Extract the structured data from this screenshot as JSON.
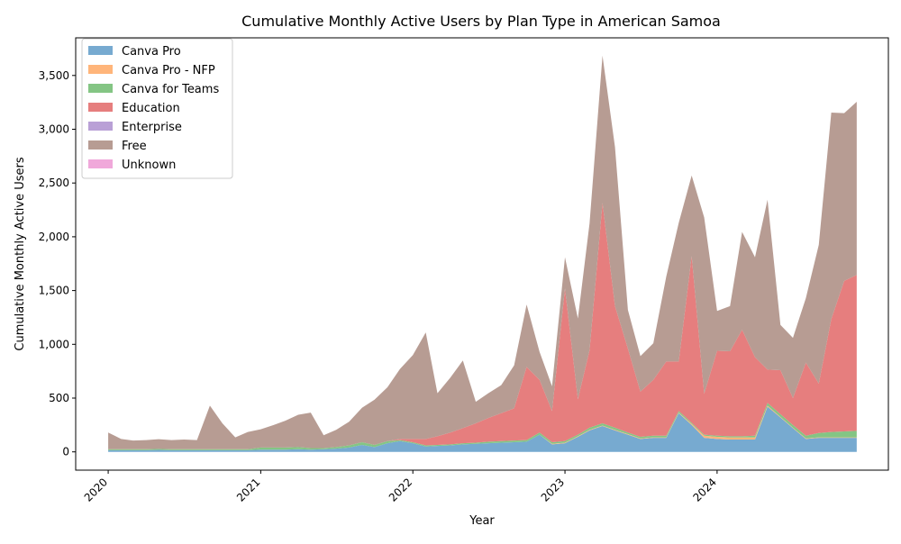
{
  "chart_data": {
    "type": "area",
    "stacked": true,
    "title": "Cumulative Monthly Active Users by Plan Type in American Samoa",
    "xlabel": "Year",
    "ylabel": "Cumulative Monthly Active Users",
    "xlim": [
      "2019-10-15",
      "2025-02-15"
    ],
    "ylim": [
      -170,
      3850
    ],
    "xticks": [
      {
        "date": "2020-01-01",
        "label": "2020"
      },
      {
        "date": "2021-01-01",
        "label": "2021"
      },
      {
        "date": "2022-01-01",
        "label": "2022"
      },
      {
        "date": "2023-01-01",
        "label": "2023"
      },
      {
        "date": "2024-01-01",
        "label": "2024"
      }
    ],
    "yticks": [
      {
        "value": 0,
        "label": "0"
      },
      {
        "value": 500,
        "label": "500"
      },
      {
        "value": 1000,
        "label": "1,000"
      },
      {
        "value": 1500,
        "label": "1,500"
      },
      {
        "value": 2000,
        "label": "2,000"
      },
      {
        "value": 2500,
        "label": "2,500"
      },
      {
        "value": 3000,
        "label": "3,000"
      },
      {
        "value": 3500,
        "label": "3,500"
      }
    ],
    "legend_position": "top-left",
    "grid": false,
    "x": [
      "2020-01",
      "2020-02",
      "2020-03",
      "2020-04",
      "2020-05",
      "2020-06",
      "2020-07",
      "2020-08",
      "2020-09",
      "2020-10",
      "2020-11",
      "2020-12",
      "2021-01",
      "2021-02",
      "2021-03",
      "2021-04",
      "2021-05",
      "2021-06",
      "2021-07",
      "2021-08",
      "2021-09",
      "2021-10",
      "2021-11",
      "2021-12",
      "2022-01",
      "2022-02",
      "2022-03",
      "2022-04",
      "2022-05",
      "2022-06",
      "2022-07",
      "2022-08",
      "2022-09",
      "2022-10",
      "2022-11",
      "2022-12",
      "2023-01",
      "2023-02",
      "2023-03",
      "2023-04",
      "2023-05",
      "2023-06",
      "2023-07",
      "2023-08",
      "2023-09",
      "2023-10",
      "2023-11",
      "2023-12",
      "2024-01",
      "2024-02",
      "2024-03",
      "2024-04",
      "2024-05",
      "2024-06",
      "2024-07",
      "2024-08",
      "2024-09",
      "2024-10",
      "2024-11",
      "2024-12"
    ],
    "series": [
      {
        "name": "Canva Pro",
        "color": "#77aad0",
        "values": [
          15,
          15,
          15,
          15,
          18,
          15,
          15,
          15,
          15,
          15,
          15,
          15,
          20,
          20,
          20,
          25,
          20,
          25,
          30,
          40,
          65,
          45,
          80,
          100,
          80,
          50,
          55,
          60,
          70,
          75,
          80,
          85,
          90,
          95,
          160,
          70,
          80,
          140,
          200,
          240,
          200,
          160,
          120,
          130,
          130,
          360,
          250,
          130,
          120,
          115,
          115,
          115,
          420,
          320,
          220,
          120,
          130,
          130,
          130,
          130
        ]
      },
      {
        "name": "Canva Pro - NFP",
        "color": "#ffb57a",
        "values": [
          0,
          0,
          0,
          0,
          0,
          0,
          0,
          0,
          0,
          0,
          0,
          0,
          0,
          0,
          0,
          0,
          0,
          0,
          0,
          0,
          0,
          0,
          0,
          0,
          0,
          0,
          0,
          0,
          0,
          0,
          0,
          0,
          0,
          0,
          0,
          5,
          5,
          5,
          5,
          5,
          5,
          5,
          5,
          5,
          5,
          5,
          10,
          20,
          20,
          20,
          20,
          20,
          10,
          5,
          5,
          5,
          5,
          5,
          5,
          5
        ]
      },
      {
        "name": "Canva for Teams",
        "color": "#84c584",
        "values": [
          10,
          10,
          10,
          10,
          10,
          10,
          10,
          10,
          10,
          10,
          10,
          10,
          20,
          20,
          20,
          20,
          15,
          10,
          15,
          20,
          25,
          20,
          20,
          10,
          10,
          10,
          10,
          10,
          10,
          10,
          15,
          15,
          15,
          15,
          20,
          15,
          15,
          15,
          20,
          20,
          20,
          15,
          15,
          15,
          15,
          15,
          10,
          10,
          10,
          10,
          10,
          15,
          25,
          25,
          25,
          25,
          40,
          50,
          55,
          60
        ]
      },
      {
        "name": "Education",
        "color": "#e67e7e",
        "values": [
          0,
          0,
          0,
          0,
          0,
          0,
          0,
          0,
          0,
          0,
          0,
          0,
          0,
          0,
          0,
          0,
          0,
          0,
          0,
          0,
          0,
          0,
          0,
          10,
          30,
          60,
          80,
          110,
          140,
          180,
          220,
          260,
          300,
          680,
          490,
          290,
          1420,
          330,
          720,
          2050,
          1130,
          780,
          420,
          520,
          690,
          460,
          1550,
          380,
          790,
          790,
          990,
          730,
          310,
          410,
          250,
          680,
          460,
          1050,
          1400,
          1450
        ]
      },
      {
        "name": "Enterprise",
        "color": "#b9a0d6",
        "values": [
          0,
          0,
          0,
          0,
          0,
          0,
          0,
          0,
          0,
          0,
          0,
          0,
          0,
          0,
          0,
          0,
          0,
          0,
          0,
          0,
          0,
          0,
          0,
          0,
          0,
          0,
          0,
          0,
          0,
          0,
          0,
          0,
          0,
          0,
          0,
          0,
          0,
          0,
          0,
          0,
          0,
          0,
          0,
          0,
          0,
          0,
          0,
          0,
          0,
          0,
          0,
          0,
          0,
          0,
          0,
          0,
          0,
          0,
          0,
          0
        ]
      },
      {
        "name": "Free",
        "color": "#b79c93",
        "values": [
          155,
          95,
          80,
          85,
          90,
          85,
          90,
          85,
          405,
          240,
          110,
          160,
          170,
          210,
          250,
          300,
          330,
          120,
          160,
          220,
          320,
          420,
          500,
          650,
          780,
          990,
          400,
          510,
          630,
          200,
          230,
          260,
          400,
          580,
          260,
          230,
          290,
          750,
          1180,
          1370,
          1480,
          360,
          330,
          340,
          790,
          1290,
          750,
          1640,
          370,
          420,
          910,
          930,
          1580,
          420,
          560,
          600,
          1290,
          1920,
          1560,
          1610
        ]
      },
      {
        "name": "Unknown",
        "color": "#f0a8da",
        "values": [
          0,
          0,
          0,
          0,
          0,
          0,
          0,
          0,
          0,
          0,
          0,
          0,
          0,
          0,
          0,
          0,
          0,
          0,
          0,
          0,
          0,
          0,
          0,
          0,
          0,
          0,
          0,
          0,
          0,
          0,
          0,
          0,
          0,
          0,
          0,
          0,
          0,
          0,
          0,
          0,
          0,
          0,
          0,
          0,
          0,
          0,
          0,
          0,
          0,
          0,
          0,
          0,
          0,
          0,
          0,
          0,
          0,
          0,
          0,
          0
        ]
      }
    ]
  }
}
